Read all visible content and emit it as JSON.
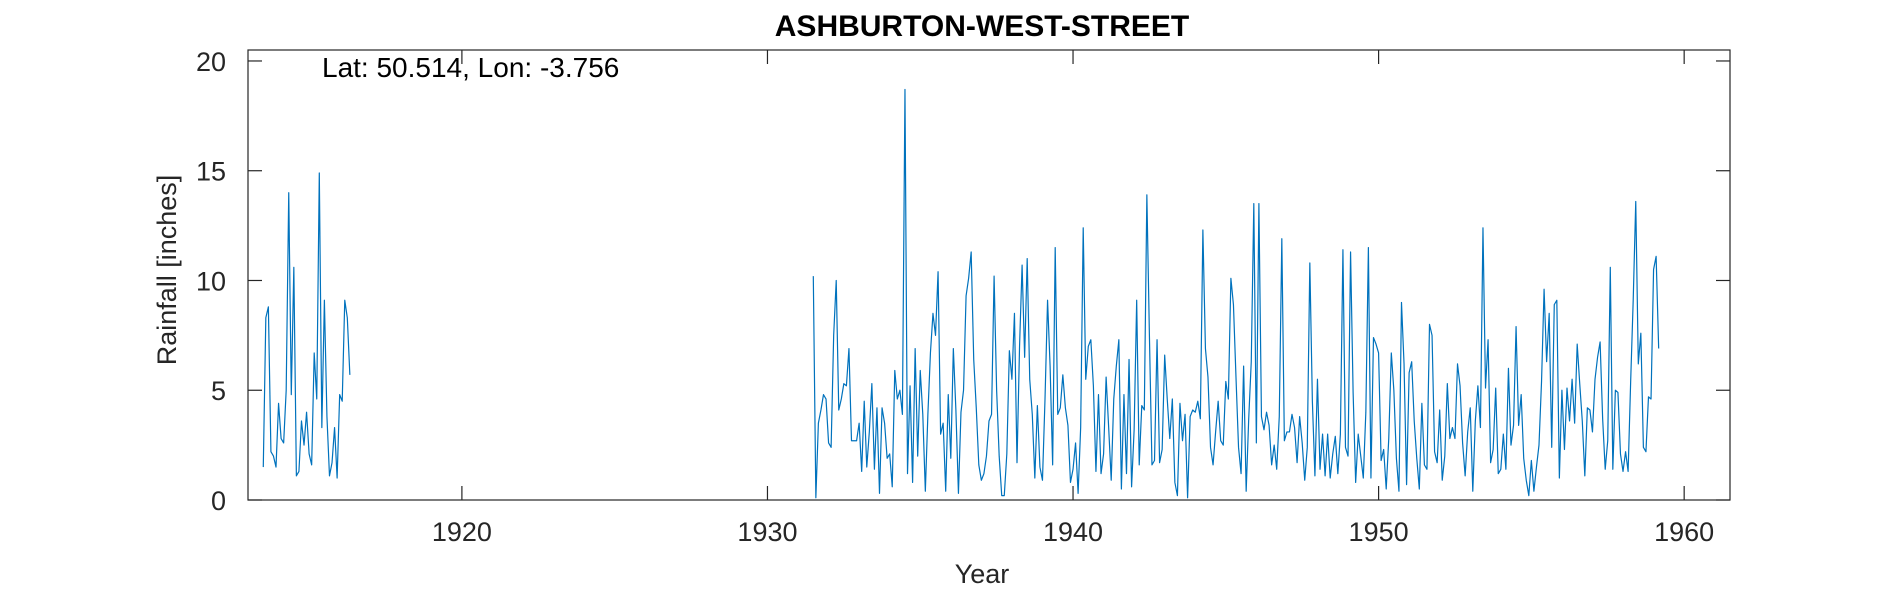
{
  "chart_data": {
    "type": "line",
    "title": "ASHBURTON-WEST-STREET",
    "xlabel": "Year",
    "ylabel": "Rainfall [inches]",
    "annotation": "Lat: 50.514, Lon: -3.756",
    "xlim": [
      1913.0,
      1961.5
    ],
    "ylim": [
      0,
      20.5
    ],
    "xticks": [
      1920,
      1930,
      1940,
      1950,
      1960
    ],
    "xtick_labels": [
      "1920",
      "1930",
      "1940",
      "1950",
      "1960"
    ],
    "yticks": [
      0,
      5,
      10,
      15,
      20
    ],
    "ytick_labels": [
      "0",
      "5",
      "10",
      "15",
      "20"
    ],
    "line_color": "#0072bd",
    "axis_color": "#262626",
    "grid": false,
    "legend": "none",
    "series": [
      {
        "x_start": 1913.5,
        "x_step": 0.08333,
        "values": [
          1.5,
          8.3,
          8.8,
          2.2,
          2.0,
          1.5,
          4.4,
          2.8,
          2.6,
          5.0,
          14.0,
          4.8,
          10.6,
          1.1,
          1.3,
          3.6,
          2.5,
          4.0,
          2.1,
          1.6,
          6.7,
          4.6,
          14.9,
          3.3,
          9.1,
          3.8,
          1.1,
          1.7,
          3.3,
          1.0,
          4.8,
          4.5,
          9.1,
          8.3,
          5.7
        ]
      },
      {
        "x_start": 1931.5,
        "x_step": 0.08333,
        "values": [
          10.2,
          0.1,
          3.5,
          4.1,
          4.8,
          4.6,
          2.6,
          2.4,
          7.5,
          10.0,
          4.1,
          4.6,
          5.3,
          5.2,
          6.9,
          2.7,
          2.7,
          2.7,
          3.5,
          1.3,
          4.5,
          1.5,
          3.1,
          5.3,
          1.4,
          4.2,
          0.3,
          4.2,
          3.5,
          1.9,
          2.1,
          0.6,
          5.9,
          4.6,
          5.0,
          3.9,
          18.7,
          1.2,
          5.2,
          0.8,
          6.9,
          2.0,
          5.9,
          3.9,
          0.4,
          3.9,
          6.7,
          8.5,
          7.5,
          10.4,
          3.0,
          3.5,
          0.4,
          4.8,
          1.9,
          6.9,
          4.1,
          0.3,
          4.0,
          5.0,
          9.3,
          10.1,
          11.3,
          6.4,
          4.2,
          1.6,
          0.9,
          1.2,
          2.0,
          3.6,
          3.9,
          10.2,
          5.0,
          2.0,
          0.2,
          0.2,
          2.1,
          6.8,
          5.5,
          8.5,
          1.7,
          7.0,
          10.7,
          6.5,
          11.0,
          5.5,
          3.9,
          1.0,
          4.3,
          1.5,
          0.9,
          4.6,
          9.1,
          6.1,
          1.6,
          11.5,
          3.9,
          4.2,
          5.7,
          4.2,
          3.4,
          0.8,
          1.4,
          2.6,
          0.3,
          3.3,
          12.4,
          5.5,
          7.0,
          7.3,
          5.2,
          1.3,
          4.8,
          1.2,
          2.1,
          5.6,
          3.3,
          0.9,
          4.6,
          6.1,
          7.3,
          0.5,
          4.8,
          1.2,
          6.4,
          0.6,
          3.2,
          9.1,
          1.6,
          4.3,
          4.1,
          13.9,
          7.5,
          1.6,
          1.8,
          7.3,
          1.7,
          2.3,
          6.6,
          4.6,
          2.8,
          4.6,
          0.8,
          0.2,
          4.4,
          2.7,
          3.9,
          0.1,
          3.8,
          4.1,
          4.0,
          4.5,
          3.7,
          12.3,
          6.9,
          5.6,
          2.4,
          1.6,
          3.1,
          4.5,
          2.7,
          2.5,
          5.4,
          4.6,
          10.1,
          8.9,
          5.6,
          2.4,
          1.2,
          6.1,
          0.4,
          3.7,
          6.3,
          13.5,
          2.6,
          13.5,
          3.8,
          3.2,
          4.0,
          3.4,
          1.6,
          2.5,
          1.4,
          3.8,
          11.9,
          2.7,
          3.1,
          3.1,
          3.9,
          3.3,
          1.7,
          3.8,
          2.6,
          0.9,
          2.4,
          10.8,
          4.5,
          1.1,
          5.5,
          1.4,
          3.0,
          1.1,
          3.0,
          1.0,
          2.1,
          2.9,
          1.2,
          3.0,
          11.4,
          2.4,
          2.0,
          11.3,
          4.9,
          0.8,
          3.0,
          2.0,
          1.0,
          4.0,
          11.5,
          1.0,
          7.4,
          7.1,
          6.7,
          1.8,
          2.3,
          0.5,
          2.8,
          6.7,
          5.0,
          1.9,
          0.4,
          9.0,
          6.2,
          0.7,
          5.8,
          6.3,
          3.6,
          1.9,
          0.5,
          4.4,
          1.6,
          1.4,
          8.0,
          7.5,
          2.2,
          1.7,
          4.1,
          0.9,
          2.0,
          5.3,
          2.8,
          3.3,
          2.8,
          6.2,
          5.2,
          2.6,
          1.1,
          3.1,
          4.2,
          0.4,
          3.6,
          5.2,
          3.3,
          12.4,
          5.1,
          7.3,
          1.7,
          2.3,
          5.1,
          1.2,
          1.4,
          3.0,
          1.4,
          6.0,
          2.5,
          3.4,
          7.9,
          3.4,
          4.8,
          1.9,
          0.9,
          0.2,
          1.8,
          0.4,
          1.5,
          2.5,
          5.4,
          9.6,
          6.3,
          8.5,
          2.4,
          8.9,
          9.1,
          1.0,
          5.0,
          2.3,
          5.1,
          3.6,
          5.5,
          3.5,
          7.1,
          5.3,
          3.6,
          1.1,
          4.2,
          4.1,
          3.1,
          5.5,
          6.5,
          7.2,
          3.7,
          1.4,
          2.7,
          10.6,
          1.4,
          5.0,
          4.9,
          2.1,
          1.3,
          2.2,
          1.3,
          5.4,
          9.1,
          13.6,
          6.2,
          7.6,
          2.4,
          2.2,
          4.7,
          4.6,
          10.5,
          11.1,
          6.9
        ]
      }
    ]
  }
}
